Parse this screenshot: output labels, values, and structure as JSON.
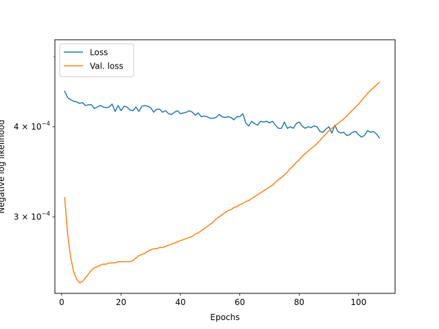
{
  "chart_data": {
    "type": "line",
    "xlabel": "Epochs",
    "ylabel": "Negative log likelihood",
    "xlim": [
      -2.3,
      112.3
    ],
    "ylim": [
      0.000235,
      0.000528
    ],
    "yscale": "log",
    "grid": false,
    "legend_position": "upper-left",
    "x_ticks": [
      0,
      20,
      40,
      60,
      80,
      100
    ],
    "x_tick_labels": [
      "0",
      "20",
      "40",
      "60",
      "80",
      "100"
    ],
    "y_ticks": [
      0.0003,
      0.0004
    ],
    "y_tick_labels": [
      "3 × 10^−4",
      "4 × 10^−4"
    ],
    "y_minor_ticks": [
      0.0005
    ],
    "series": [
      {
        "name": "Loss",
        "color": "#1f77b4",
        "x": [
          1,
          2,
          3,
          4,
          5,
          6,
          7,
          8,
          9,
          10,
          11,
          12,
          13,
          14,
          15,
          16,
          17,
          18,
          19,
          20,
          21,
          22,
          23,
          24,
          25,
          26,
          27,
          28,
          29,
          30,
          31,
          32,
          33,
          34,
          35,
          36,
          37,
          38,
          39,
          40,
          41,
          42,
          43,
          44,
          45,
          46,
          47,
          48,
          49,
          50,
          51,
          52,
          53,
          54,
          55,
          56,
          57,
          58,
          59,
          60,
          61,
          62,
          63,
          64,
          65,
          66,
          67,
          68,
          69,
          70,
          71,
          72,
          73,
          74,
          75,
          76,
          77,
          78,
          79,
          80,
          81,
          82,
          83,
          84,
          85,
          86,
          87,
          88,
          89,
          90,
          91,
          92,
          93,
          94,
          95,
          96,
          97,
          98,
          99,
          100,
          101,
          102,
          103,
          104,
          105,
          106,
          107
        ],
        "y": [
          0.000448,
          0.000439,
          0.000436,
          0.000434,
          0.000433,
          0.000431,
          0.000432,
          0.000428,
          0.000429,
          0.000429,
          0.000424,
          0.000426,
          0.000428,
          0.000426,
          0.000425,
          0.000426,
          0.00043,
          0.00042,
          0.000428,
          0.000421,
          0.000427,
          0.000426,
          0.000422,
          0.000421,
          0.000426,
          0.00042,
          0.000427,
          0.000428,
          0.000427,
          0.000425,
          0.000419,
          0.000423,
          0.000423,
          0.000419,
          0.000421,
          0.000417,
          0.000416,
          0.000419,
          0.000421,
          0.000417,
          0.000418,
          0.000419,
          0.000421,
          0.000419,
          0.000415,
          0.000418,
          0.000413,
          0.000414,
          0.000413,
          0.000411,
          0.000411,
          0.000412,
          0.000416,
          0.000413,
          0.000412,
          0.000413,
          0.000412,
          0.000409,
          0.000413,
          0.000413,
          0.000417,
          0.000405,
          0.000401,
          0.000407,
          0.000404,
          0.000402,
          0.000407,
          0.000406,
          0.000407,
          0.000405,
          0.000407,
          0.000402,
          0.000398,
          0.000398,
          0.000406,
          0.000398,
          0.0004,
          0.000398,
          0.000404,
          0.000406,
          0.000401,
          0.000398,
          0.0004,
          0.000399,
          0.000401,
          0.0004,
          0.000394,
          0.000393,
          0.000397,
          0.0004,
          0.000392,
          0.000402,
          0.000394,
          0.000392,
          0.000393,
          0.000389,
          0.00039,
          0.000393,
          0.000394,
          0.00039,
          0.000387,
          0.000389,
          0.000395,
          0.000393,
          0.000394,
          0.000391,
          0.000386
        ]
      },
      {
        "name": "Val. loss",
        "color": "#ff7f0e",
        "x": [
          1,
          2,
          3,
          4,
          5,
          6,
          7,
          8,
          9,
          10,
          11,
          12,
          13,
          14,
          15,
          16,
          17,
          18,
          19,
          20,
          21,
          22,
          23,
          24,
          25,
          26,
          27,
          28,
          29,
          30,
          31,
          32,
          33,
          34,
          35,
          36,
          37,
          38,
          39,
          40,
          41,
          42,
          43,
          44,
          45,
          46,
          47,
          48,
          49,
          50,
          51,
          52,
          53,
          54,
          55,
          56,
          57,
          58,
          59,
          60,
          61,
          62,
          63,
          64,
          65,
          66,
          67,
          68,
          69,
          70,
          71,
          72,
          73,
          74,
          75,
          76,
          77,
          78,
          79,
          80,
          81,
          82,
          83,
          84,
          85,
          86,
          87,
          88,
          89,
          90,
          91,
          92,
          93,
          94,
          95,
          96,
          97,
          98,
          99,
          100,
          101,
          102,
          103,
          104,
          105,
          106,
          107
        ],
        "y": [
          0.000319,
          0.000284,
          0.000264,
          0.000252,
          0.000246,
          0.000243,
          0.000244,
          0.000247,
          0.00025,
          0.000253,
          0.000255,
          0.000256,
          0.000257,
          0.000258,
          0.000258,
          0.000259,
          0.000259,
          0.000259,
          0.00026,
          0.00026,
          0.00026,
          0.00026,
          0.00026,
          0.000261,
          0.000263,
          0.000265,
          0.000266,
          0.000267,
          0.000269,
          0.00027,
          0.000271,
          0.000271,
          0.000272,
          0.000272,
          0.000273,
          0.000274,
          0.000275,
          0.000276,
          0.000277,
          0.000278,
          0.000279,
          0.00028,
          0.000281,
          0.000282,
          0.000284,
          0.000285,
          0.000287,
          0.000289,
          0.000291,
          0.000293,
          0.000295,
          0.000298,
          0.0003,
          0.000302,
          0.000304,
          0.000306,
          0.000307,
          0.000309,
          0.00031,
          0.000312,
          0.000313,
          0.000315,
          0.000316,
          0.000318,
          0.00032,
          0.000322,
          0.000324,
          0.000326,
          0.000328,
          0.00033,
          0.000332,
          0.000335,
          0.000338,
          0.00034,
          0.000343,
          0.000346,
          0.00035,
          0.000353,
          0.000357,
          0.00036,
          0.000364,
          0.000367,
          0.00037,
          0.000373,
          0.000376,
          0.000379,
          0.000383,
          0.000387,
          0.000391,
          0.000395,
          0.000398,
          0.000401,
          0.000404,
          0.000407,
          0.00041,
          0.000414,
          0.000418,
          0.000422,
          0.000426,
          0.00043,
          0.000435,
          0.00044,
          0.000445,
          0.000449,
          0.000453,
          0.000457,
          0.000461
        ]
      }
    ]
  }
}
